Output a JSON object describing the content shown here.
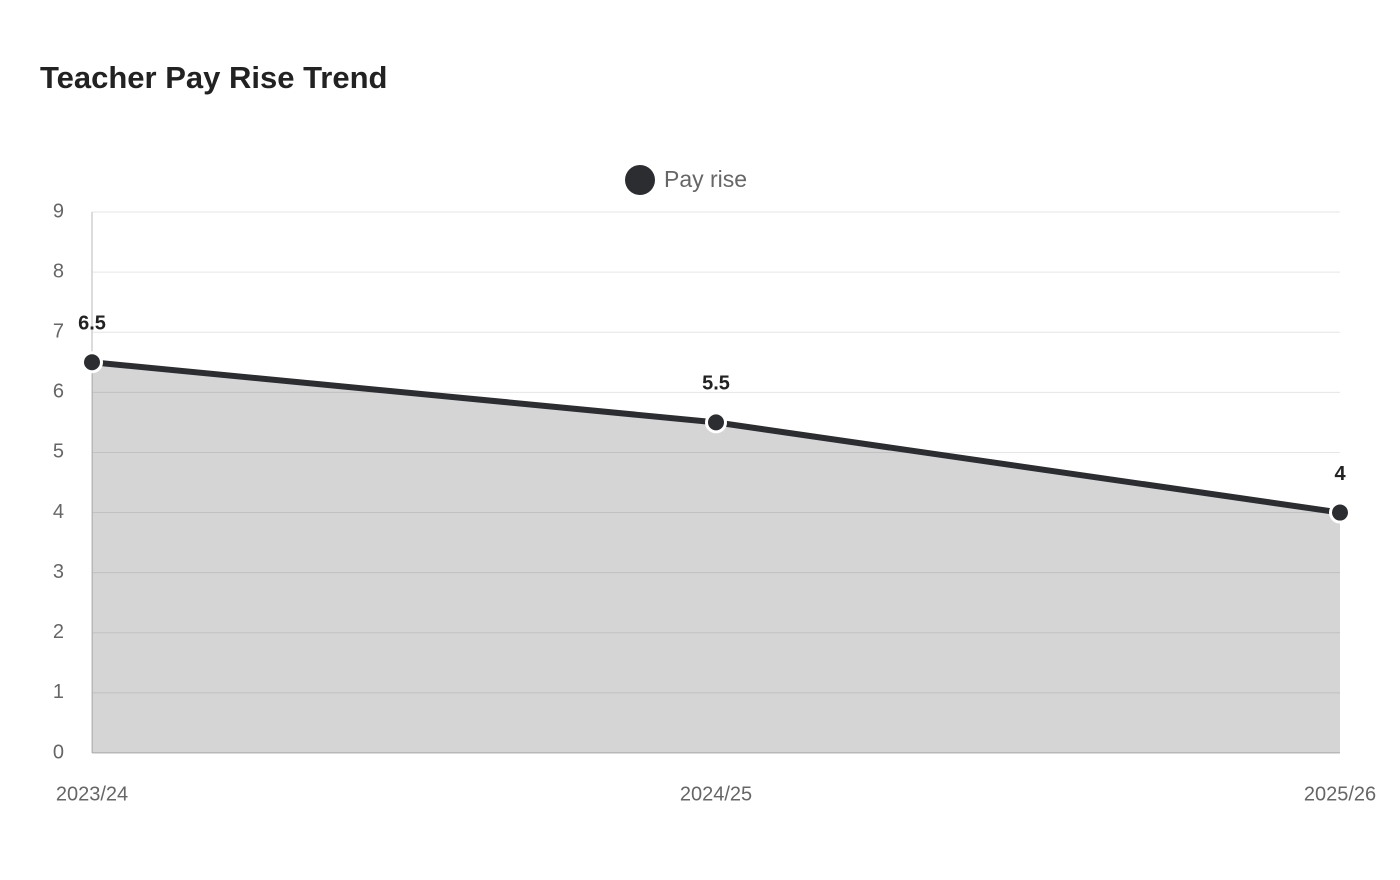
{
  "chart_data": {
    "type": "area",
    "title": "Teacher Pay Rise Trend",
    "categories": [
      "2023/24",
      "2024/25",
      "2025/26"
    ],
    "series": [
      {
        "name": "Pay rise",
        "color": "#2b2d30",
        "values": [
          6.5,
          5.5,
          4
        ]
      }
    ],
    "ylim": [
      0,
      9
    ],
    "yticks": [
      0,
      1,
      2,
      3,
      4,
      5,
      6,
      7,
      8,
      9
    ],
    "grid": true,
    "legend": "top",
    "data_labels": true
  }
}
